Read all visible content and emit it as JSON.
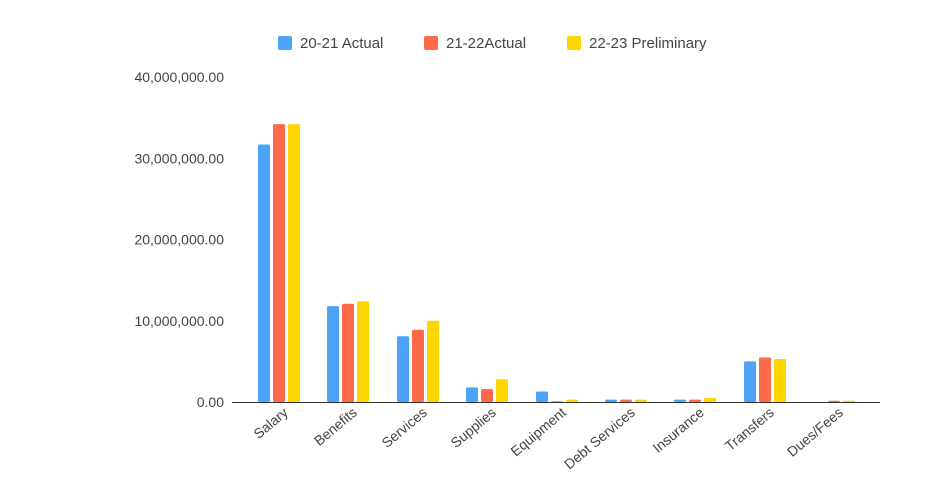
{
  "chart_data": {
    "type": "bar",
    "title": "",
    "xlabel": "",
    "ylabel": "",
    "ylim": [
      0,
      40000000
    ],
    "yticks": [
      0,
      10000000,
      20000000,
      30000000,
      40000000
    ],
    "ytick_labels": [
      "0.00",
      "10,000,000.00",
      "20,000,000.00",
      "30,000,000.00",
      "40,000,000.00"
    ],
    "grid": false,
    "legend_position": "top-center",
    "categories": [
      "Salary",
      "Benefits",
      "Services",
      "Supplies",
      "Equipment",
      "Debt Services",
      "Insurance",
      "Transfers",
      "Dues/Fees"
    ],
    "series": [
      {
        "name": "20-21 Actual",
        "color": "#4DA3F7",
        "values": [
          31700000,
          11800000,
          8100000,
          1800000,
          1300000,
          300000,
          300000,
          5000000,
          0
        ]
      },
      {
        "name": "21-22Actual",
        "color": "#FF6B4A",
        "values": [
          34200000,
          12100000,
          8900000,
          1600000,
          100000,
          300000,
          300000,
          5500000,
          150000
        ]
      },
      {
        "name": "22-23 Preliminary",
        "color": "#FFD400",
        "values": [
          34200000,
          12400000,
          10000000,
          2800000,
          300000,
          300000,
          500000,
          5300000,
          150000
        ]
      }
    ]
  }
}
